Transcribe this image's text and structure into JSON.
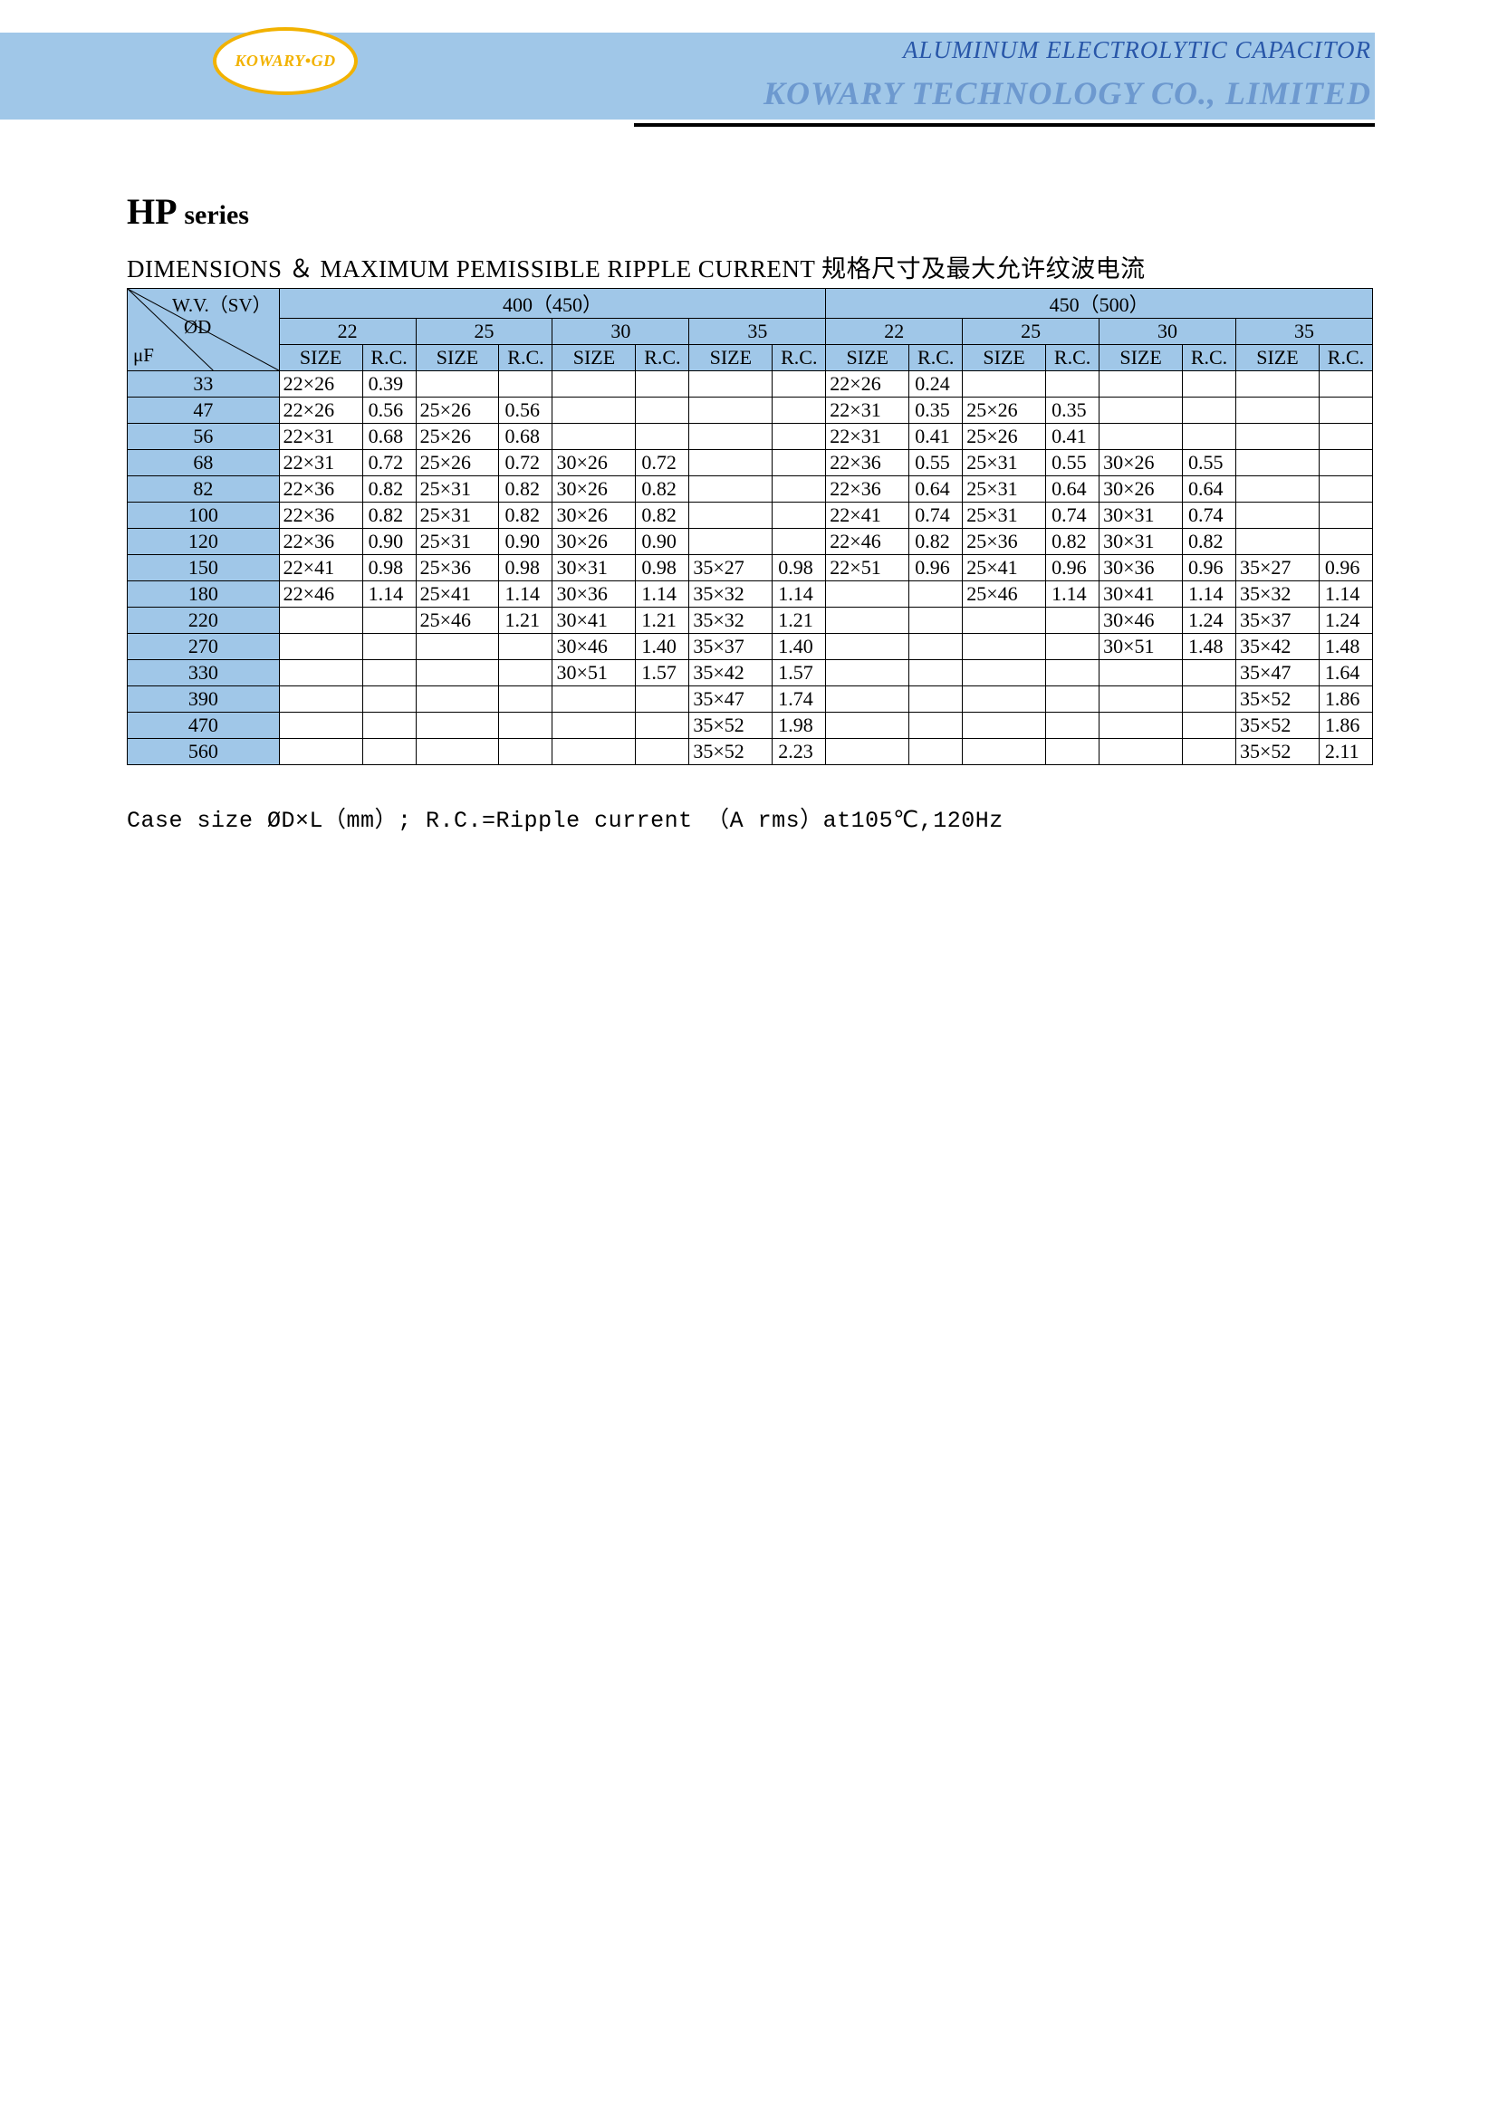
{
  "header": {
    "logo_text": "KOWARY•GD",
    "subtitle": "ALUMINUM ELECTROLYTIC CAPACITOR",
    "company": "KOWARY TECHNOLOGY CO., LIMITED",
    "band_color": "#a0c7e8",
    "logo_border_color": "#f2b200",
    "subtitle_color": "#2856a8",
    "company_color": "#6d99cf"
  },
  "series": {
    "prefix": "HP",
    "suffix": "series"
  },
  "section_title": "DIMENSIONS  ＆  MAXIMUM PEMISSIBLE RIPPLE CURRENT  规格尺寸及最大允许纹波电流",
  "corner": {
    "wv": "W.V.（SV）",
    "od": "ØD",
    "uf": "μF"
  },
  "voltage_groups": [
    "400（450）",
    "450（500）"
  ],
  "diameters": [
    "22",
    "25",
    "30",
    "35",
    "22",
    "25",
    "30",
    "35"
  ],
  "subheaders": [
    "SIZE",
    "R.C."
  ],
  "capacitance": [
    "33",
    "47",
    "56",
    "68",
    "82",
    "100",
    "120",
    "150",
    "180",
    "220",
    "270",
    "330",
    "390",
    "470",
    "560"
  ],
  "rows": [
    [
      [
        "22×26",
        "0.39"
      ],
      [
        "",
        ""
      ],
      [
        "",
        ""
      ],
      [
        "",
        ""
      ],
      [
        "22×26",
        "0.24"
      ],
      [
        "",
        ""
      ],
      [
        "",
        ""
      ],
      [
        "",
        ""
      ]
    ],
    [
      [
        "22×26",
        "0.56"
      ],
      [
        "25×26",
        "0.56"
      ],
      [
        "",
        ""
      ],
      [
        "",
        ""
      ],
      [
        "22×31",
        "0.35"
      ],
      [
        "25×26",
        "0.35"
      ],
      [
        "",
        ""
      ],
      [
        "",
        ""
      ]
    ],
    [
      [
        "22×31",
        "0.68"
      ],
      [
        "25×26",
        "0.68"
      ],
      [
        "",
        ""
      ],
      [
        "",
        ""
      ],
      [
        "22×31",
        "0.41"
      ],
      [
        "25×26",
        "0.41"
      ],
      [
        "",
        ""
      ],
      [
        "",
        ""
      ]
    ],
    [
      [
        "22×31",
        "0.72"
      ],
      [
        "25×26",
        "0.72"
      ],
      [
        "30×26",
        "0.72"
      ],
      [
        "",
        ""
      ],
      [
        "22×36",
        "0.55"
      ],
      [
        "25×31",
        "0.55"
      ],
      [
        "30×26",
        "0.55"
      ],
      [
        "",
        ""
      ]
    ],
    [
      [
        "22×36",
        "0.82"
      ],
      [
        "25×31",
        "0.82"
      ],
      [
        "30×26",
        "0.82"
      ],
      [
        "",
        ""
      ],
      [
        "22×36",
        "0.64"
      ],
      [
        "25×31",
        "0.64"
      ],
      [
        "30×26",
        "0.64"
      ],
      [
        "",
        ""
      ]
    ],
    [
      [
        "22×36",
        "0.82"
      ],
      [
        "25×31",
        "0.82"
      ],
      [
        "30×26",
        "0.82"
      ],
      [
        "",
        ""
      ],
      [
        "22×41",
        "0.74"
      ],
      [
        "25×31",
        "0.74"
      ],
      [
        "30×31",
        "0.74"
      ],
      [
        "",
        ""
      ]
    ],
    [
      [
        "22×36",
        "0.90"
      ],
      [
        "25×31",
        "0.90"
      ],
      [
        "30×26",
        "0.90"
      ],
      [
        "",
        ""
      ],
      [
        "22×46",
        "0.82"
      ],
      [
        "25×36",
        "0.82"
      ],
      [
        "30×31",
        "0.82"
      ],
      [
        "",
        ""
      ]
    ],
    [
      [
        "22×41",
        "0.98"
      ],
      [
        "25×36",
        "0.98"
      ],
      [
        "30×31",
        "0.98"
      ],
      [
        "35×27",
        "0.98"
      ],
      [
        "22×51",
        "0.96"
      ],
      [
        "25×41",
        "0.96"
      ],
      [
        "30×36",
        "0.96"
      ],
      [
        "35×27",
        "0.96"
      ]
    ],
    [
      [
        "22×46",
        "1.14"
      ],
      [
        "25×41",
        "1.14"
      ],
      [
        "30×36",
        "1.14"
      ],
      [
        "35×32",
        "1.14"
      ],
      [
        "",
        ""
      ],
      [
        "25×46",
        "1.14"
      ],
      [
        "30×41",
        "1.14"
      ],
      [
        "35×32",
        "1.14"
      ]
    ],
    [
      [
        "",
        ""
      ],
      [
        "25×46",
        "1.21"
      ],
      [
        "30×41",
        "1.21"
      ],
      [
        "35×32",
        "1.21"
      ],
      [
        "",
        ""
      ],
      [
        "",
        ""
      ],
      [
        "30×46",
        "1.24"
      ],
      [
        "35×37",
        "1.24"
      ]
    ],
    [
      [
        "",
        ""
      ],
      [
        "",
        ""
      ],
      [
        "30×46",
        "1.40"
      ],
      [
        "35×37",
        "1.40"
      ],
      [
        "",
        ""
      ],
      [
        "",
        ""
      ],
      [
        "30×51",
        "1.48"
      ],
      [
        "35×42",
        "1.48"
      ]
    ],
    [
      [
        "",
        ""
      ],
      [
        "",
        ""
      ],
      [
        "30×51",
        "1.57"
      ],
      [
        "35×42",
        "1.57"
      ],
      [
        "",
        ""
      ],
      [
        "",
        ""
      ],
      [
        "",
        ""
      ],
      [
        "35×47",
        "1.64"
      ]
    ],
    [
      [
        "",
        ""
      ],
      [
        "",
        ""
      ],
      [
        "",
        ""
      ],
      [
        "35×47",
        "1.74"
      ],
      [
        "",
        ""
      ],
      [
        "",
        ""
      ],
      [
        "",
        ""
      ],
      [
        "35×52",
        "1.86"
      ]
    ],
    [
      [
        "",
        ""
      ],
      [
        "",
        ""
      ],
      [
        "",
        ""
      ],
      [
        "35×52",
        "1.98"
      ],
      [
        "",
        ""
      ],
      [
        "",
        ""
      ],
      [
        "",
        ""
      ],
      [
        "35×52",
        "1.86"
      ]
    ],
    [
      [
        "",
        ""
      ],
      [
        "",
        ""
      ],
      [
        "",
        ""
      ],
      [
        "35×52",
        "2.23"
      ],
      [
        "",
        ""
      ],
      [
        "",
        ""
      ],
      [
        "",
        ""
      ],
      [
        "35×52",
        "2.11"
      ]
    ]
  ],
  "footnote": "Case size ØD×L（mm）; R.C.=Ripple current （A rms）at105℃,120Hz",
  "colors": {
    "row_blue": "#a0c7e8",
    "border": "#000000",
    "background": "#ffffff"
  },
  "column_widths": {
    "uf": 168,
    "size": 92,
    "rc": 59
  },
  "fonts": {
    "body": "Times New Roman",
    "table_size": 22,
    "title_size": 40,
    "section_size": 27
  }
}
